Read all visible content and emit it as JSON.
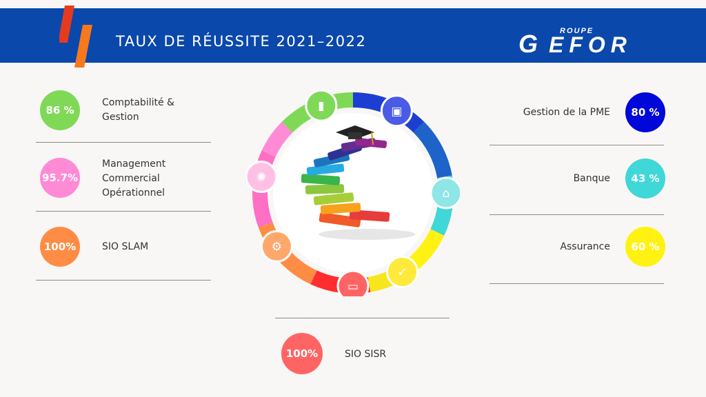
{
  "header": {
    "title": "TAUX DE RÉUSSITE 2021–2022",
    "logo_small": "ROUPE",
    "logo_main": "EFOR",
    "logo_initial": "G"
  },
  "colors": {
    "header_bg": "#0a48ab",
    "stripe_red": "#e43b1f",
    "stripe_orange": "#f7781d"
  },
  "left_items": [
    {
      "rate": "86 %",
      "label_lines": [
        "Comptabilité &",
        "Gestion"
      ],
      "color": "#7fd957"
    },
    {
      "rate": "95.7%",
      "label_lines": [
        "Management",
        "Commercial",
        "Opérationnel"
      ],
      "color": "#ff8ad6"
    },
    {
      "rate": "100%",
      "label_lines": [
        "SIO SLAM"
      ],
      "color": "#ff8c45"
    }
  ],
  "right_items": [
    {
      "rate": "80 %",
      "label": "Gestion de la PME",
      "color": "#0008d9"
    },
    {
      "rate": "43 %",
      "label": "Banque",
      "color": "#3fd7d7"
    },
    {
      "rate": "60 %",
      "label": "Assurance",
      "color": "#fff212"
    }
  ],
  "bottom_item": {
    "rate": "100%",
    "label": "SIO SISR",
    "color": "#ff6464"
  },
  "wheel_icons": [
    "chart-icon",
    "wallet-icon",
    "bank-icon",
    "checkmark-icon",
    "computer-icon",
    "gears-icon",
    "network-icon"
  ]
}
